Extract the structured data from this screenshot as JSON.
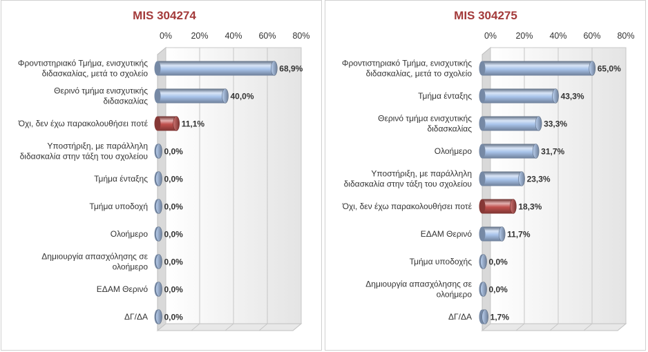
{
  "chart_data": [
    {
      "type": "bar",
      "orientation": "horizontal",
      "title": "MIS 304274",
      "categories": [
        [
          "Φροντιστηριακό Τμήμα, ενισχυτικής",
          "διδασκαλίας, μετά το σχολείο"
        ],
        [
          "Θερινό τμήμα ενισχυτικής",
          "διδασκαλίας"
        ],
        [
          "Όχι, δεν έχω παρακολουθήσει ποτέ"
        ],
        [
          "Υποστήριξη, με παράλληλη",
          "διδασκαλία  στην τάξη του σχολείου"
        ],
        [
          "Τμήμα ένταξης"
        ],
        [
          "Τμήμα υποδοχή"
        ],
        [
          "Ολοήμερο"
        ],
        [
          "Δημιουργία απασχόλησης σε",
          "ολοήμερο"
        ],
        [
          "ΕΔΑΜ Θερινό"
        ],
        [
          "ΔΓ/ΔΑ"
        ]
      ],
      "values": [
        68.9,
        40.0,
        11.1,
        0.0,
        0.0,
        0.0,
        0.0,
        0.0,
        0.0,
        0.0
      ],
      "value_labels": [
        "68,9%",
        "40,0%",
        "11,1%",
        "0,0%",
        "0,0%",
        "0,0%",
        "0,0%",
        "0,0%",
        "0,0%",
        "0,0%"
      ],
      "highlight": [
        false,
        false,
        true,
        false,
        false,
        false,
        false,
        false,
        false,
        false
      ],
      "xticks": [
        "0%",
        "20%",
        "40%",
        "60%",
        "80%"
      ],
      "xlim": [
        0,
        80
      ],
      "axis_position": "top",
      "grid": true,
      "colors": {
        "bar": "#a9c4eb",
        "highlight": "#c0504d",
        "title": "#a33a3a"
      }
    },
    {
      "type": "bar",
      "orientation": "horizontal",
      "title": "MIS 304275",
      "categories": [
        [
          "Φροντιστηριακό Τμήμα, ενισχυτικής",
          "διδασκαλίας, μετά το σχολείο"
        ],
        [
          "Τμήμα ένταξης"
        ],
        [
          "Θερινό τμήμα ενισχυτικής",
          "διδασκαλίας"
        ],
        [
          "Ολοήμερο"
        ],
        [
          "Υποστήριξη, με παράλληλη",
          "διδασκαλία  στην τάξη του σχολείου"
        ],
        [
          "Όχι, δεν έχω παρακολουθήσει ποτέ"
        ],
        [
          "ΕΔΑΜ Θερινό"
        ],
        [
          "Τμήμα υποδοχής"
        ],
        [
          "Δημιουργία απασχόλησης σε",
          "ολοήμερο"
        ],
        [
          "ΔΓ/ΔΑ"
        ]
      ],
      "values": [
        65.0,
        43.3,
        33.3,
        31.7,
        23.3,
        18.3,
        11.7,
        0.0,
        0.0,
        1.7
      ],
      "value_labels": [
        "65,0%",
        "43,3%",
        "33,3%",
        "31,7%",
        "23,3%",
        "18,3%",
        "11,7%",
        "0,0%",
        "0,0%",
        "1,7%"
      ],
      "highlight": [
        false,
        false,
        false,
        false,
        false,
        true,
        false,
        false,
        false,
        false
      ],
      "xticks": [
        "0%",
        "20%",
        "40%",
        "60%",
        "80%"
      ],
      "xlim": [
        0,
        80
      ],
      "axis_position": "top",
      "grid": true,
      "colors": {
        "bar": "#a9c4eb",
        "highlight": "#c0504d",
        "title": "#a33a3a"
      }
    }
  ]
}
